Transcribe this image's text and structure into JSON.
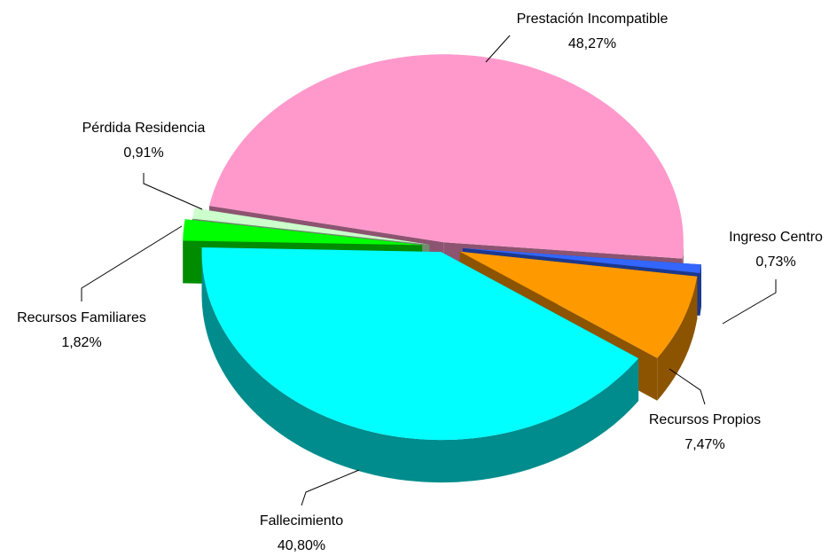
{
  "chart_data": {
    "type": "pie3d",
    "categories": [
      "Prestación Incompatible",
      "Ingreso Centro",
      "Recursos Propios",
      "Fallecimiento",
      "Recursos Familiares",
      "Pérdida Residencia"
    ],
    "values": [
      48.27,
      0.73,
      7.47,
      40.8,
      1.82,
      0.91
    ],
    "value_labels": [
      "48,27%",
      "0,73%",
      "7,47%",
      "40,80%",
      "1,82%",
      "0,91%"
    ],
    "colors": [
      "#ff99cc",
      "#3366ff",
      "#ff9900",
      "#00ffff",
      "#00ff00",
      "#ccffcc"
    ]
  }
}
